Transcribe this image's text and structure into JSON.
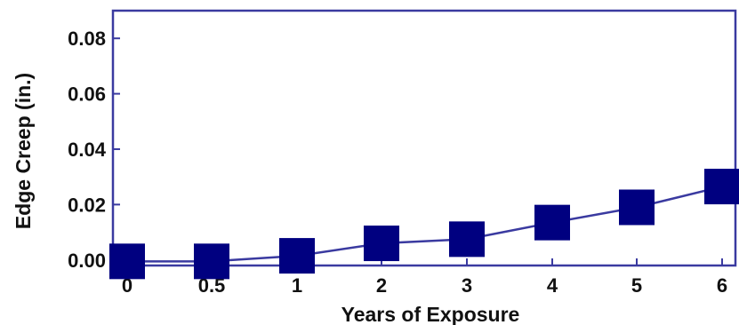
{
  "chart_data": {
    "type": "line",
    "title": "",
    "xlabel": "Years of Exposure",
    "ylabel": "Edge Creep (in.)",
    "categories": [
      "0",
      "0.5",
      "1",
      "2",
      "3",
      "4",
      "5",
      "6"
    ],
    "series": [
      {
        "values": [
          -0.0005,
          -0.0005,
          0.0015,
          0.006,
          0.0075,
          0.0135,
          0.019,
          0.0265
        ]
      }
    ],
    "ylim": [
      -0.002,
      0.09
    ],
    "yticks": [
      "0.00",
      "0.02",
      "0.04",
      "0.06",
      "0.08"
    ],
    "grid": false,
    "legend": "none",
    "colors": {
      "frame": "#3a3aa0",
      "line": "#3a3aa0",
      "marker": "#000080",
      "text": "#111111"
    }
  }
}
